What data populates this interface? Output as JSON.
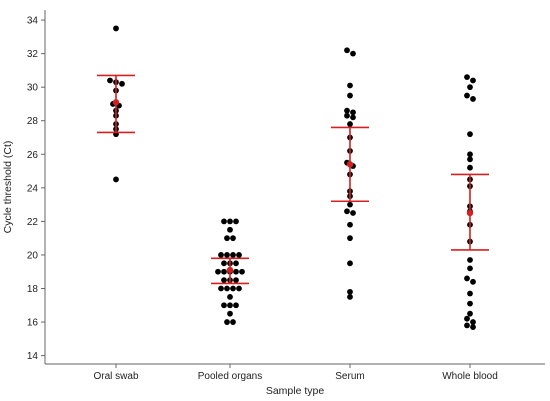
{
  "chart_data": {
    "type": "scatter",
    "subtype": "dot-plot-with-mean-and-confidence-interval",
    "xlabel": "Sample type",
    "ylabel": "Cycle threshold (Ct)",
    "ylim": [
      13.5,
      34.6
    ],
    "y_ticks": [
      "14",
      "16",
      "18",
      "20",
      "22",
      "24",
      "26",
      "28",
      "30",
      "32",
      "34"
    ],
    "categories": [
      "Oral swab",
      "Pooled organs",
      "Serum",
      "Whole blood"
    ],
    "grid": false,
    "legend": "none",
    "colors": {
      "points": "#000000",
      "summary": "#d42020",
      "axis": "#666666"
    },
    "groups": [
      {
        "category": "Oral swab",
        "points": [
          33.5,
          30.4,
          30.3,
          30.2,
          29.8,
          29.0,
          28.9,
          28.6,
          28.3,
          27.8,
          27.5,
          27.2,
          24.5
        ],
        "mean": 29.1,
        "ci_upper": 30.7,
        "ci_lower": 27.3
      },
      {
        "category": "Pooled organs",
        "points": [
          22.0,
          22.0,
          22.0,
          21.5,
          21.0,
          21.0,
          20.0,
          20.0,
          20.0,
          20.0,
          19.5,
          19.5,
          19.5,
          19.0,
          19.0,
          19.0,
          19.0,
          19.0,
          18.5,
          18.5,
          18.5,
          18.0,
          18.0,
          18.0,
          18.0,
          17.5,
          17.0,
          17.0,
          17.0,
          16.5,
          16.0,
          16.0
        ],
        "mean": 19.1,
        "ci_upper": 19.8,
        "ci_lower": 18.3
      },
      {
        "category": "Serum",
        "points": [
          32.2,
          32.0,
          30.1,
          29.5,
          28.6,
          28.5,
          28.3,
          28.2,
          27.8,
          27.0,
          26.2,
          25.5,
          25.3,
          24.8,
          23.8,
          23.5,
          23.0,
          22.6,
          22.5,
          21.8,
          21.0,
          19.5,
          17.8,
          17.5
        ],
        "mean": 25.4,
        "ci_upper": 27.6,
        "ci_lower": 23.2
      },
      {
        "category": "Whole blood",
        "points": [
          30.6,
          30.4,
          30.0,
          29.5,
          29.3,
          27.2,
          26.0,
          25.7,
          25.2,
          24.5,
          24.1,
          22.9,
          22.6,
          21.8,
          20.8,
          19.7,
          19.2,
          18.6,
          18.4,
          17.7,
          17.1,
          16.5,
          16.2,
          16.0,
          15.8,
          15.7
        ],
        "mean": 22.5,
        "ci_upper": 24.8,
        "ci_lower": 20.3
      }
    ]
  }
}
